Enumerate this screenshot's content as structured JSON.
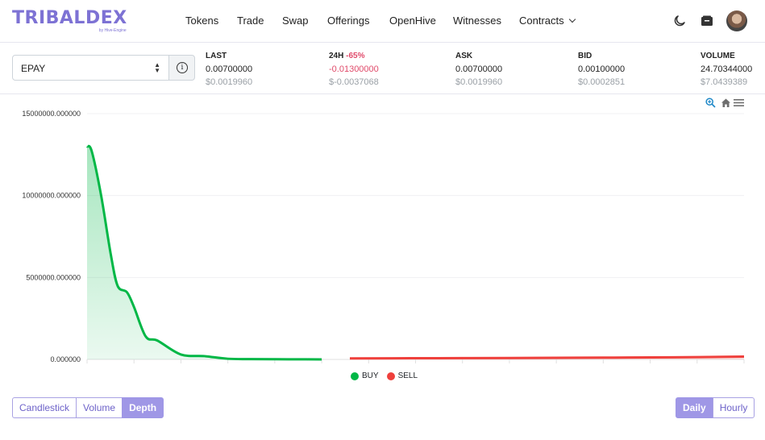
{
  "header": {
    "logo": "TRIBALDEX",
    "logo_sub": "by Hive-Engine",
    "nav": [
      {
        "label": "Tokens"
      },
      {
        "label": "Trade"
      },
      {
        "label": "Swap"
      },
      {
        "label": "Offerings"
      },
      {
        "label": "OpenHive"
      },
      {
        "label": "Witnesses"
      },
      {
        "label": "Contracts"
      }
    ]
  },
  "token_select": {
    "value": "EPAY"
  },
  "stats": {
    "last": {
      "label": "LAST",
      "value": "0.00700000",
      "usd": "$0.0019960"
    },
    "change": {
      "label": "24H",
      "pct": "-65%",
      "value": "-0.01300000",
      "usd": "$-0.0037068"
    },
    "ask": {
      "label": "ASK",
      "value": "0.00700000",
      "usd": "$0.0019960"
    },
    "bid": {
      "label": "BID",
      "value": "0.00100000",
      "usd": "$0.0002851"
    },
    "volume": {
      "label": "VOLUME",
      "value": "24.70344000",
      "usd": "$7.0439389"
    }
  },
  "chart_data": {
    "type": "area",
    "y_ticks": [
      "15000000.000000",
      "10000000.000000",
      "5000000.000000",
      "0.000000"
    ],
    "ylim": [
      0,
      15000000
    ],
    "grid": true,
    "legend_position": "bottom-center",
    "series": [
      {
        "name": "BUY",
        "color": "#00b746",
        "x": [
          0,
          0.02,
          0.06,
          0.1,
          0.13,
          0.17,
          0.2,
          0.25,
          0.3,
          0.4,
          0.5,
          0.6,
          0.7,
          0.8,
          0.9,
          1.0
        ],
        "y": [
          13000000,
          12700000,
          10000000,
          6500000,
          4500000,
          4100000,
          3200000,
          1400000,
          1150000,
          300000,
          200000,
          40000,
          20000,
          10000,
          5000,
          0
        ]
      },
      {
        "name": "SELL",
        "color": "#ef403c",
        "x": [
          1.12,
          1.3,
          1.6,
          1.9,
          2.2,
          2.5,
          2.8
        ],
        "y": [
          60000,
          70000,
          80000,
          90000,
          110000,
          130000,
          170000
        ]
      }
    ]
  },
  "left_tabs": [
    {
      "label": "Candlestick",
      "active": false
    },
    {
      "label": "Volume",
      "active": false
    },
    {
      "label": "Depth",
      "active": true
    }
  ],
  "right_tabs": [
    {
      "label": "Daily",
      "active": true
    },
    {
      "label": "Hourly",
      "active": false
    }
  ]
}
